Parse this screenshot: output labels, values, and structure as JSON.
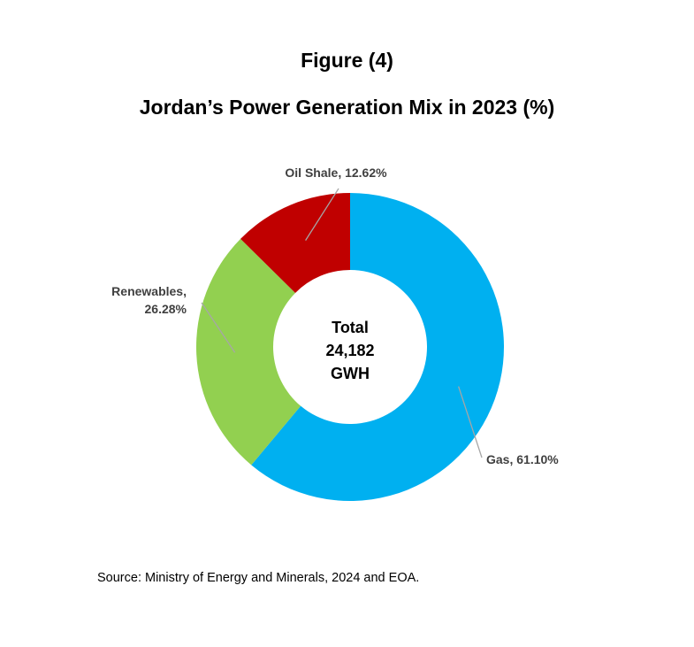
{
  "figure_label": "Figure (4)",
  "source": "Source: Ministry of Energy and Minerals, 2024 and EOA.",
  "chart_data": {
    "type": "pie",
    "donut": true,
    "title": "Jordan’s Power Generation Mix in 2023 (%)",
    "categories": [
      "Gas",
      "Renewables",
      "Oil Shale"
    ],
    "values": [
      61.1,
      26.28,
      12.62
    ],
    "slice_labels": [
      [
        "Gas, 61.10%"
      ],
      [
        "Renewables,",
        "26.28%"
      ],
      [
        "Oil Shale, 12.62%"
      ]
    ],
    "colors": [
      "#00B0F0",
      "#92D050",
      "#C00000"
    ],
    "center_label": [
      "Total",
      "24,182",
      "GWH"
    ],
    "start_angle_deg": 0,
    "direction": "clockwise",
    "legend": "none"
  }
}
